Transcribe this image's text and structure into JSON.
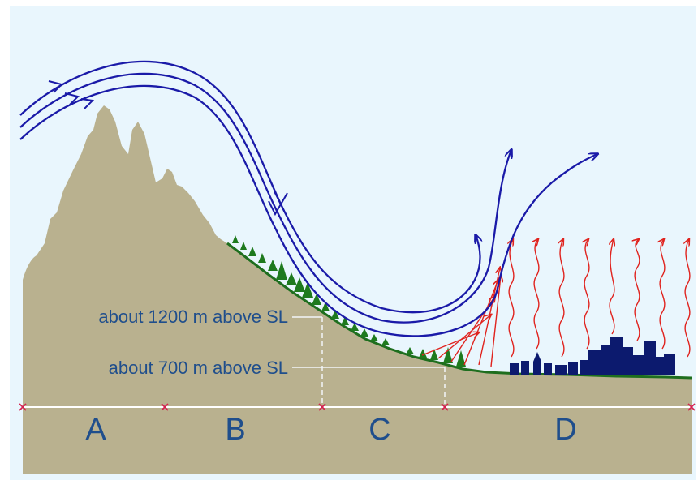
{
  "colors": {
    "sky": "#e9f6fd",
    "ground": "#b9b18f",
    "airflow": "#1a1aa8",
    "heat": "#e0231e",
    "trees": "#1e7a1e",
    "city": "#0c1a6e",
    "text": "#1f4e8c",
    "marker": "#d6204f"
  },
  "labels": {
    "elev_high": "about 1200 m above SL",
    "elev_low": "about 700 m above SL"
  },
  "zones": [
    "A",
    "B",
    "C",
    "D"
  ]
}
